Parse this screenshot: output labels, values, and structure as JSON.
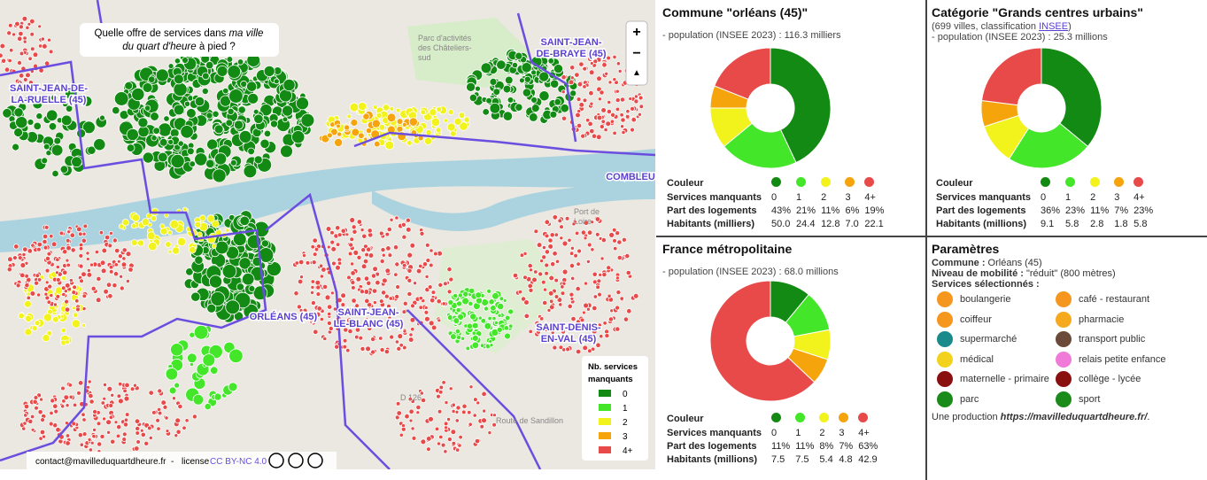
{
  "map": {
    "title_parts": [
      "Quelle offre de services dans ",
      "ma ville",
      "du quart d'heure",
      " à pied ?"
    ],
    "places": [
      [
        "SAINT-JEAN-",
        "DE-BRAYE (45)"
      ],
      [
        "SAINT-JEAN-DE-",
        "LA-RUELLE (45)"
      ],
      [
        "ORLÉANS (45)"
      ],
      [
        "SAINT-JEAN-",
        "LE-BLANC (45)"
      ],
      [
        "SAINT-DENIS-",
        "EN-VAL (45)"
      ],
      [
        "COMBLEU"
      ]
    ],
    "road_labels": [
      "Parc d'activités",
      "des Châteliers-",
      "sud",
      "D 126",
      "Port de",
      "Loire",
      "Route de Sandillon"
    ],
    "zoom": [
      "+",
      "−",
      "▲"
    ],
    "legend": {
      "title": [
        "Nb. services",
        "manquants"
      ],
      "labels": [
        "0",
        "1",
        "2",
        "3",
        "4+"
      ]
    },
    "footer": {
      "contact": "contact@mavilleduquartdheure.fr",
      "sep": "-",
      "license_label": "license",
      "license": "CC BY-NC 4.0"
    }
  },
  "chart_data": [
    {
      "type": "pie",
      "title": "Commune \"orléans (45)\"",
      "subtitle": [
        "- population (INSEE 2023) : 116.3 milliers"
      ],
      "categories": [
        "0",
        "1",
        "2",
        "3",
        "4+"
      ],
      "values": [
        43,
        21,
        11,
        6,
        19
      ],
      "value_labels": [
        "43%",
        "21%",
        "11%",
        "6%",
        "19%"
      ],
      "colors": [
        "#138a13",
        "#44e62a",
        "#f2f21c",
        "#f5a40c",
        "#e84a4a"
      ],
      "row_labels": [
        "Couleur",
        "Services manquants",
        "Part des logements",
        "Habitants (milliers)"
      ],
      "habitants": [
        "50.0",
        "24.4",
        "12.8",
        "7.0",
        "22.1"
      ]
    },
    {
      "type": "pie",
      "title": "Catégorie \"Grands centres urbains\"",
      "subtitle": [
        "(699 villes, classification ",
        "INSEE",
        ")",
        "- population (INSEE 2023) : 25.3 millions"
      ],
      "categories": [
        "0",
        "1",
        "2",
        "3",
        "4+"
      ],
      "values": [
        36,
        23,
        11,
        7,
        23
      ],
      "value_labels": [
        "36%",
        "23%",
        "11%",
        "7%",
        "23%"
      ],
      "colors": [
        "#138a13",
        "#44e62a",
        "#f2f21c",
        "#f5a40c",
        "#e84a4a"
      ],
      "row_labels": [
        "Couleur",
        "Services manquants",
        "Part des logements",
        "Habitants (millions)"
      ],
      "habitants": [
        "9.1",
        "5.8",
        "2.8",
        "1.8",
        "5.8"
      ]
    },
    {
      "type": "pie",
      "title": "France métropolitaine",
      "subtitle": [
        "- population (INSEE 2023) : 68.0 millions"
      ],
      "categories": [
        "0",
        "1",
        "2",
        "3",
        "4+"
      ],
      "values": [
        11,
        11,
        8,
        7,
        63
      ],
      "value_labels": [
        "11%",
        "11%",
        "8%",
        "7%",
        "63%"
      ],
      "colors": [
        "#138a13",
        "#44e62a",
        "#f2f21c",
        "#f5a40c",
        "#e84a4a"
      ],
      "row_labels": [
        "Couleur",
        "Services manquants",
        "Part des logements",
        "Habitants (millions)"
      ],
      "habitants": [
        "7.5",
        "7.5",
        "5.4",
        "4.8",
        "42.9"
      ]
    }
  ],
  "params": {
    "title": "Paramètres",
    "rows": [
      [
        "Commune :",
        " Orléans (45)"
      ],
      [
        "Niveau de mobilité :",
        " \"réduit\" (800 mètres)"
      ]
    ],
    "services_label": "Services sélectionnés :",
    "services": [
      "boulangerie",
      "café - restaurant",
      "coiffeur",
      "pharmacie",
      "supermarché",
      "transport public",
      "médical",
      "relais petite enfance",
      "maternelle - primaire",
      "collège - lycée",
      "parc",
      "sport"
    ],
    "footer": [
      "Une production ",
      "https://mavilleduquartdheure.fr/",
      "."
    ]
  }
}
